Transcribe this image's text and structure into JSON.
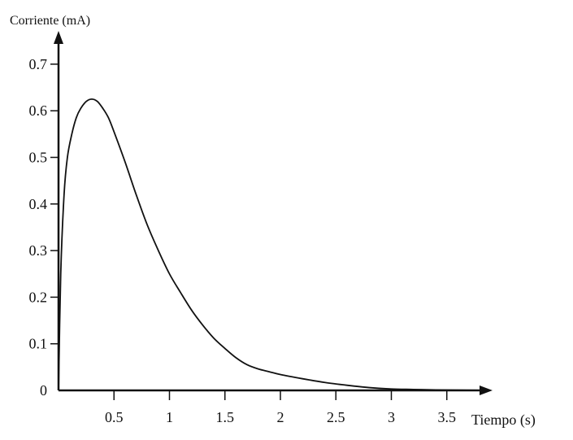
{
  "chart_data": {
    "type": "line",
    "title": "",
    "xlabel": "Tiempo (s)",
    "ylabel": "Corriente (mA)",
    "xlim": [
      0,
      4
    ],
    "ylim": [
      0,
      0.72
    ],
    "x_ticks": [
      0.5,
      1,
      1.5,
      2,
      2.5,
      3,
      3.5
    ],
    "x_tick_labels": [
      "0.5",
      "1",
      "1.5",
      "2",
      "2.5",
      "3",
      "3.5"
    ],
    "y_ticks": [
      0,
      0.1,
      0.2,
      0.3,
      0.4,
      0.5,
      0.6,
      0.7
    ],
    "y_tick_labels": [
      "0",
      "0.1",
      "0.2",
      "0.3",
      "0.4",
      "0.5",
      "0.6",
      "0.7"
    ],
    "grid": false,
    "series": [
      {
        "x": [
          0,
          0.02,
          0.05,
          0.08,
          0.12,
          0.16,
          0.2,
          0.25,
          0.3,
          0.35,
          0.4,
          0.45,
          0.5,
          0.6,
          0.7,
          0.8,
          0.9,
          1.0,
          1.1,
          1.2,
          1.3,
          1.4,
          1.5,
          1.6,
          1.7,
          1.8,
          1.9,
          2.0,
          2.2,
          2.4,
          2.6,
          2.8,
          3.0,
          3.2,
          3.4,
          3.6,
          3.8
        ],
        "values": [
          0,
          0.25,
          0.42,
          0.5,
          0.55,
          0.585,
          0.605,
          0.62,
          0.625,
          0.62,
          0.605,
          0.585,
          0.555,
          0.49,
          0.42,
          0.355,
          0.3,
          0.25,
          0.21,
          0.172,
          0.14,
          0.112,
          0.09,
          0.07,
          0.055,
          0.046,
          0.04,
          0.034,
          0.025,
          0.017,
          0.011,
          0.006,
          0.003,
          0.002,
          0.001,
          0.0005,
          0.0002
        ]
      }
    ]
  }
}
